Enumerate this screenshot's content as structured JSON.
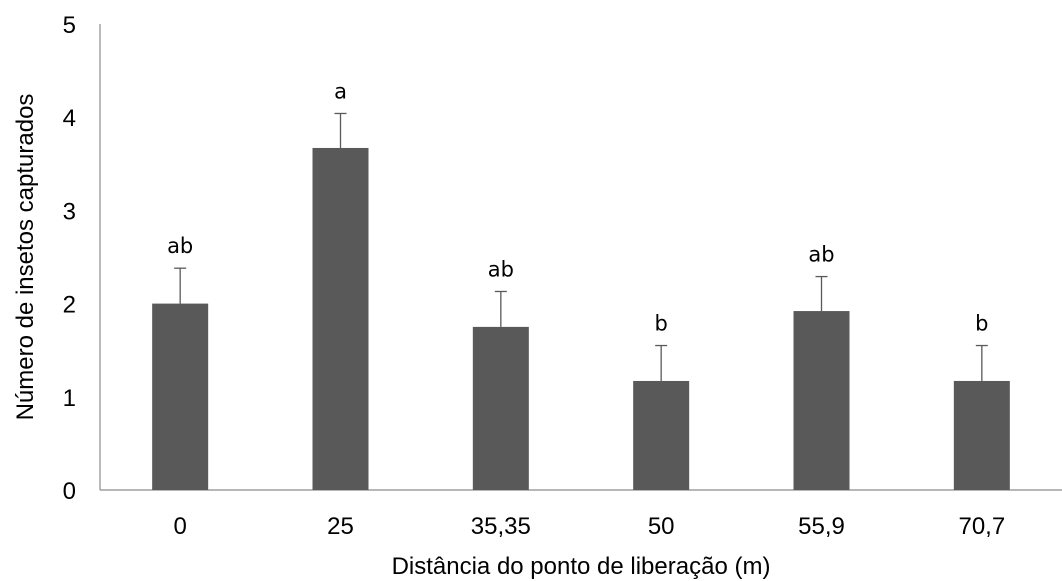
{
  "chart_data": {
    "type": "bar",
    "title": "",
    "xlabel": "Distância do ponto de liberação (m)",
    "ylabel": "Número de insetos capturados",
    "categories": [
      "0",
      "25",
      "35,35",
      "50",
      "55,9",
      "70,7"
    ],
    "values": [
      2.0,
      3.67,
      1.75,
      1.17,
      1.92,
      1.17
    ],
    "error_upper": [
      0.38,
      0.37,
      0.38,
      0.38,
      0.37,
      0.38
    ],
    "significance_labels": [
      "ab",
      "a",
      "ab",
      "b",
      "ab",
      "b"
    ],
    "ylim": [
      0,
      5
    ],
    "yticks": [
      "0",
      "1",
      "2",
      "3",
      "4",
      "5"
    ],
    "grid": false,
    "legend": "none",
    "bar_color": "#595959",
    "error_bar_color": "#595959",
    "axis_color": "#8c8c8c"
  }
}
